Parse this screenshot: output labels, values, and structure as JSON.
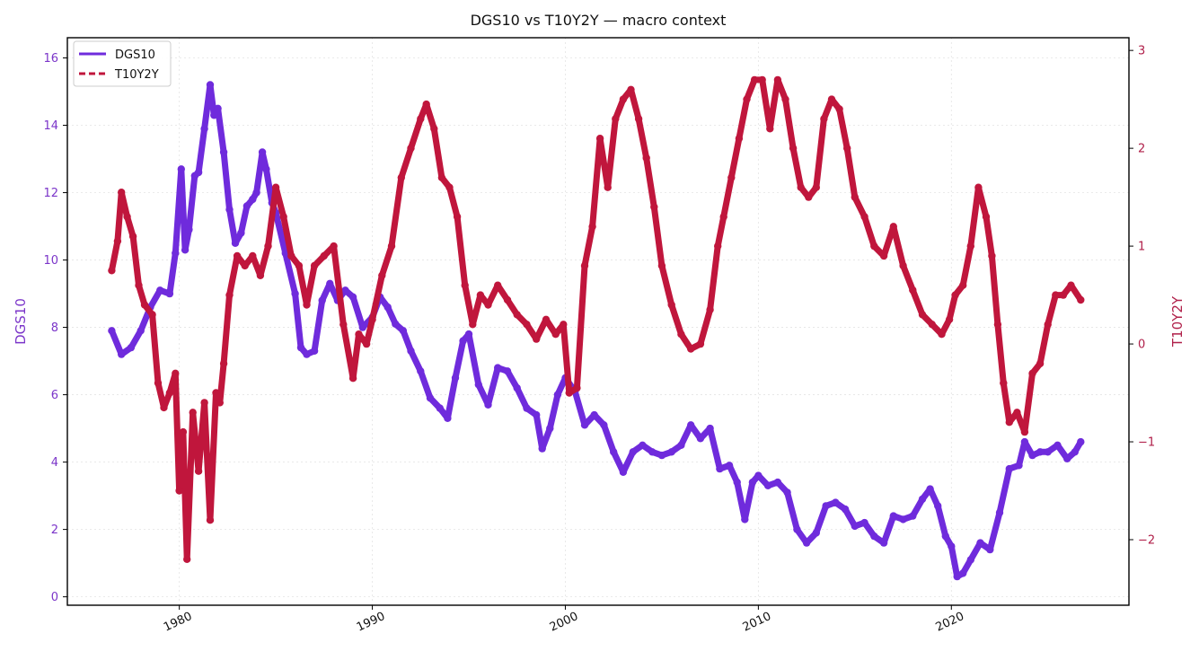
{
  "chart_data": {
    "type": "line",
    "title": "DGS10 vs T10Y2Y — macro context",
    "xlabel": "",
    "x_ticks": [
      1980,
      1990,
      2000,
      2010,
      2020
    ],
    "x_range": [
      1974.2,
      2029.2
    ],
    "grid": true,
    "legend_placement": "top-left",
    "left_axis": {
      "label": "DGS10",
      "color": "#7b35c9",
      "ticks": [
        0,
        2,
        4,
        6,
        8,
        10,
        12,
        14,
        16
      ],
      "ylim": [
        -0.25,
        16.6
      ]
    },
    "right_axis": {
      "label": "T10Y2Y",
      "color": "#b0204a",
      "ticks": [
        -2,
        -1,
        0,
        1,
        2,
        3
      ],
      "tick_labels": [
        "−2",
        "−1",
        "0",
        "1",
        "2",
        "3"
      ],
      "ylim": [
        -2.67,
        3.13
      ]
    },
    "series": [
      {
        "name": "DGS10",
        "axis": "left",
        "color": "#6f2bdc",
        "line_style": "solid",
        "x": [
          1976.5,
          1977.0,
          1977.5,
          1978.0,
          1978.5,
          1979.0,
          1979.5,
          1979.8,
          1980.1,
          1980.3,
          1980.5,
          1980.8,
          1981.0,
          1981.3,
          1981.6,
          1981.8,
          1982.0,
          1982.3,
          1982.6,
          1982.9,
          1983.2,
          1983.5,
          1983.8,
          1984.0,
          1984.3,
          1984.5,
          1984.8,
          1985.0,
          1985.5,
          1986.0,
          1986.3,
          1986.6,
          1987.0,
          1987.4,
          1987.8,
          1988.2,
          1988.6,
          1989.0,
          1989.5,
          1990.0,
          1990.4,
          1990.8,
          1991.2,
          1991.6,
          1992.0,
          1992.5,
          1993.0,
          1993.5,
          1993.9,
          1994.3,
          1994.7,
          1995.0,
          1995.5,
          1996.0,
          1996.5,
          1997.0,
          1997.5,
          1998.0,
          1998.5,
          1998.8,
          1999.2,
          1999.6,
          2000.0,
          2000.5,
          2001.0,
          2001.5,
          2002.0,
          2002.5,
          2003.0,
          2003.5,
          2004.0,
          2004.5,
          2005.0,
          2005.5,
          2006.0,
          2006.5,
          2007.0,
          2007.5,
          2008.0,
          2008.5,
          2008.9,
          2009.3,
          2009.7,
          2010.0,
          2010.5,
          2011.0,
          2011.5,
          2012.0,
          2012.5,
          2013.0,
          2013.5,
          2014.0,
          2014.5,
          2015.0,
          2015.5,
          2016.0,
          2016.5,
          2017.0,
          2017.5,
          2018.0,
          2018.5,
          2018.9,
          2019.3,
          2019.7,
          2020.0,
          2020.3,
          2020.6,
          2021.0,
          2021.5,
          2022.0,
          2022.5,
          2023.0,
          2023.5,
          2023.8,
          2024.2,
          2024.6,
          2025.0,
          2025.5,
          2026.0,
          2026.4,
          2026.7
        ],
        "values": [
          7.9,
          7.2,
          7.4,
          7.9,
          8.6,
          9.1,
          9.0,
          10.2,
          12.7,
          10.3,
          10.9,
          12.5,
          12.6,
          13.9,
          15.2,
          14.3,
          14.5,
          13.2,
          11.5,
          10.5,
          10.8,
          11.6,
          11.8,
          12.0,
          13.2,
          12.7,
          11.7,
          11.4,
          10.2,
          9.0,
          7.4,
          7.2,
          7.3,
          8.8,
          9.3,
          8.8,
          9.1,
          8.9,
          8.0,
          8.3,
          8.9,
          8.6,
          8.1,
          7.9,
          7.3,
          6.7,
          5.9,
          5.6,
          5.3,
          6.5,
          7.6,
          7.8,
          6.3,
          5.7,
          6.8,
          6.7,
          6.2,
          5.6,
          5.4,
          4.4,
          5.0,
          6.0,
          6.5,
          6.1,
          5.1,
          5.4,
          5.1,
          4.3,
          3.7,
          4.3,
          4.5,
          4.3,
          4.2,
          4.3,
          4.5,
          5.1,
          4.7,
          5.0,
          3.8,
          3.9,
          3.4,
          2.3,
          3.4,
          3.6,
          3.3,
          3.4,
          3.1,
          2.0,
          1.6,
          1.9,
          2.7,
          2.8,
          2.6,
          2.1,
          2.2,
          1.8,
          1.6,
          2.4,
          2.3,
          2.4,
          2.9,
          3.2,
          2.7,
          1.8,
          1.5,
          0.6,
          0.7,
          1.1,
          1.6,
          1.4,
          2.5,
          3.8,
          3.9,
          4.6,
          4.2,
          4.3,
          4.3,
          4.5,
          4.1,
          4.3,
          4.6
        ]
      },
      {
        "name": "T10Y2Y",
        "axis": "right",
        "color": "#c0163c",
        "line_style": "dashed",
        "x": [
          1976.5,
          1976.8,
          1977.0,
          1977.3,
          1977.6,
          1977.9,
          1978.2,
          1978.6,
          1978.9,
          1979.2,
          1979.5,
          1979.8,
          1980.0,
          1980.2,
          1980.4,
          1980.7,
          1981.0,
          1981.3,
          1981.6,
          1981.9,
          1982.1,
          1982.3,
          1982.6,
          1983.0,
          1983.4,
          1983.8,
          1984.2,
          1984.6,
          1985.0,
          1985.4,
          1985.8,
          1986.2,
          1986.6,
          1987.0,
          1987.5,
          1988.0,
          1988.5,
          1989.0,
          1989.3,
          1989.7,
          1990.0,
          1990.5,
          1991.0,
          1991.5,
          1992.0,
          1992.5,
          1992.8,
          1993.2,
          1993.6,
          1994.0,
          1994.4,
          1994.8,
          1995.2,
          1995.6,
          1996.0,
          1996.5,
          1997.0,
          1997.5,
          1998.0,
          1998.5,
          1999.0,
          1999.5,
          1999.9,
          2000.2,
          2000.6,
          2001.0,
          2001.4,
          2001.8,
          2002.2,
          2002.6,
          2003.0,
          2003.4,
          2003.8,
          2004.2,
          2004.6,
          2005.0,
          2005.5,
          2006.0,
          2006.5,
          2007.0,
          2007.5,
          2007.9,
          2008.2,
          2008.6,
          2009.0,
          2009.4,
          2009.8,
          2010.2,
          2010.6,
          2011.0,
          2011.4,
          2011.8,
          2012.2,
          2012.6,
          2013.0,
          2013.4,
          2013.8,
          2014.2,
          2014.6,
          2015.0,
          2015.5,
          2016.0,
          2016.5,
          2017.0,
          2017.5,
          2018.0,
          2018.5,
          2019.0,
          2019.5,
          2019.9,
          2020.2,
          2020.6,
          2021.0,
          2021.4,
          2021.8,
          2022.1,
          2022.4,
          2022.7,
          2023.0,
          2023.4,
          2023.8,
          2024.2,
          2024.6,
          2025.0,
          2025.4,
          2025.8,
          2026.2,
          2026.7
        ],
        "values": [
          0.75,
          1.05,
          1.55,
          1.3,
          1.1,
          0.6,
          0.4,
          0.3,
          -0.4,
          -0.65,
          -0.5,
          -0.3,
          -1.5,
          -0.9,
          -2.2,
          -0.7,
          -1.3,
          -0.6,
          -1.8,
          -0.5,
          -0.6,
          -0.2,
          0.5,
          0.9,
          0.8,
          0.9,
          0.7,
          1.0,
          1.6,
          1.3,
          0.9,
          0.8,
          0.4,
          0.8,
          0.9,
          1.0,
          0.2,
          -0.35,
          0.1,
          0.0,
          0.25,
          0.7,
          1.0,
          1.7,
          2.0,
          2.3,
          2.45,
          2.2,
          1.7,
          1.6,
          1.3,
          0.6,
          0.2,
          0.5,
          0.4,
          0.6,
          0.45,
          0.3,
          0.2,
          0.05,
          0.25,
          0.1,
          0.2,
          -0.5,
          -0.45,
          0.8,
          1.2,
          2.1,
          1.6,
          2.3,
          2.5,
          2.6,
          2.3,
          1.9,
          1.4,
          0.8,
          0.4,
          0.1,
          -0.05,
          0.0,
          0.35,
          1.0,
          1.3,
          1.7,
          2.1,
          2.5,
          2.7,
          2.7,
          2.2,
          2.7,
          2.5,
          2.0,
          1.6,
          1.5,
          1.6,
          2.3,
          2.5,
          2.4,
          2.0,
          1.5,
          1.3,
          1.0,
          0.9,
          1.2,
          0.8,
          0.55,
          0.3,
          0.2,
          0.1,
          0.25,
          0.5,
          0.6,
          1.0,
          1.6,
          1.3,
          0.9,
          0.2,
          -0.4,
          -0.8,
          -0.7,
          -0.9,
          -0.3,
          -0.2,
          0.2,
          0.5,
          0.5,
          0.6,
          0.45
        ]
      }
    ]
  }
}
